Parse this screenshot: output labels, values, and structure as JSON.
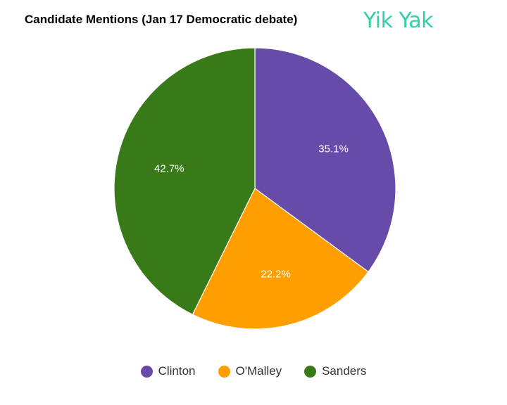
{
  "header": {
    "logo_text": "Yik Yak",
    "logo_color": "#2fd0a8"
  },
  "chart_data": {
    "type": "pie",
    "title": "Candidate Mentions (Jan 17 Democratic debate)",
    "categories": [
      "Clinton",
      "O'Malley",
      "Sanders"
    ],
    "values": [
      35.1,
      22.2,
      42.7
    ],
    "labels": [
      "35.1%",
      "22.2%",
      "42.7%"
    ],
    "colors": [
      "#674ba8",
      "#ff9e00",
      "#387a17"
    ],
    "legend_position": "bottom"
  }
}
